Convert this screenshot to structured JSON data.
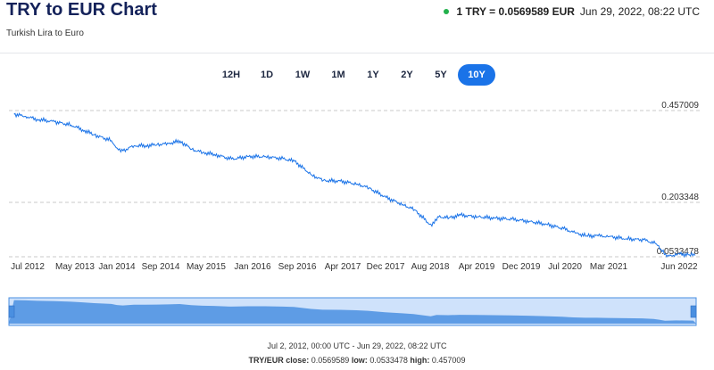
{
  "header": {
    "title": "TRY to EUR Chart",
    "subtitle": "Turkish Lira to Euro",
    "status_color": "#22b14c",
    "rate_label": "1 TRY = 0.0569589 EUR",
    "timestamp": "Jun 29, 2022, 08:22 UTC"
  },
  "ranges": {
    "items": [
      "12H",
      "1D",
      "1W",
      "1M",
      "1Y",
      "2Y",
      "5Y",
      "10Y"
    ],
    "active": "10Y",
    "accent": "#1a73e8"
  },
  "footer": {
    "period": "Jul 2, 2012, 00:00 UTC - Jun 29, 2022, 08:22 UTC",
    "close_label": "TRY/EUR close:",
    "close_value": "0.0569589",
    "low_label": "low:",
    "low_value": "0.0533478",
    "high_label": "high:",
    "high_value": "0.457009"
  },
  "chart_data": {
    "type": "line",
    "title": "",
    "xlabel": "",
    "ylabel": "",
    "x_ticks": [
      "Jul 2012",
      "May 2013",
      "Jan 2014",
      "Sep 2014",
      "May 2015",
      "Jan 2016",
      "Sep 2016",
      "Apr 2017",
      "Dec 2017",
      "Aug 2018",
      "Apr 2019",
      "Dec 2019",
      "Jul 2020",
      "Mar 2021",
      "Jun 2022"
    ],
    "y_ticks": [
      "0.457009",
      "0.203348",
      "0.0533478"
    ],
    "ylim": [
      0.0533478,
      0.457009
    ],
    "grid": true,
    "line_color": "#1a73e8",
    "navigator_color": "#4a8fe0",
    "series": [
      {
        "x": [
          "2012-07",
          "2012-09",
          "2012-11",
          "2013-02",
          "2013-05",
          "2013-07",
          "2013-09",
          "2013-12",
          "2014-01",
          "2014-02",
          "2014-04",
          "2014-06",
          "2014-08",
          "2014-10",
          "2014-12",
          "2015-02",
          "2015-04",
          "2015-06",
          "2015-09",
          "2015-12",
          "2016-03",
          "2016-06",
          "2016-08",
          "2016-11",
          "2017-01",
          "2017-04",
          "2017-07",
          "2017-09",
          "2017-12",
          "2018-03",
          "2018-05",
          "2018-08",
          "2018-09",
          "2018-11",
          "2019-01",
          "2019-04",
          "2019-07",
          "2019-10",
          "2020-01",
          "2020-04",
          "2020-07",
          "2020-09",
          "2020-11",
          "2021-01",
          "2021-03",
          "2021-06",
          "2021-09",
          "2021-11",
          "2021-12",
          "2022-01",
          "2022-03",
          "2022-05",
          "2022-06"
        ],
        "values": [
          0.447,
          0.441,
          0.433,
          0.426,
          0.417,
          0.404,
          0.39,
          0.374,
          0.353,
          0.346,
          0.36,
          0.36,
          0.363,
          0.366,
          0.373,
          0.35,
          0.341,
          0.336,
          0.323,
          0.33,
          0.33,
          0.324,
          0.317,
          0.279,
          0.264,
          0.262,
          0.254,
          0.243,
          0.217,
          0.197,
          0.183,
          0.138,
          0.164,
          0.161,
          0.168,
          0.164,
          0.16,
          0.157,
          0.151,
          0.143,
          0.131,
          0.119,
          0.111,
          0.111,
          0.109,
          0.103,
          0.1,
          0.09,
          0.074,
          0.0533478,
          0.061,
          0.059,
          0.0569589
        ]
      }
    ]
  }
}
